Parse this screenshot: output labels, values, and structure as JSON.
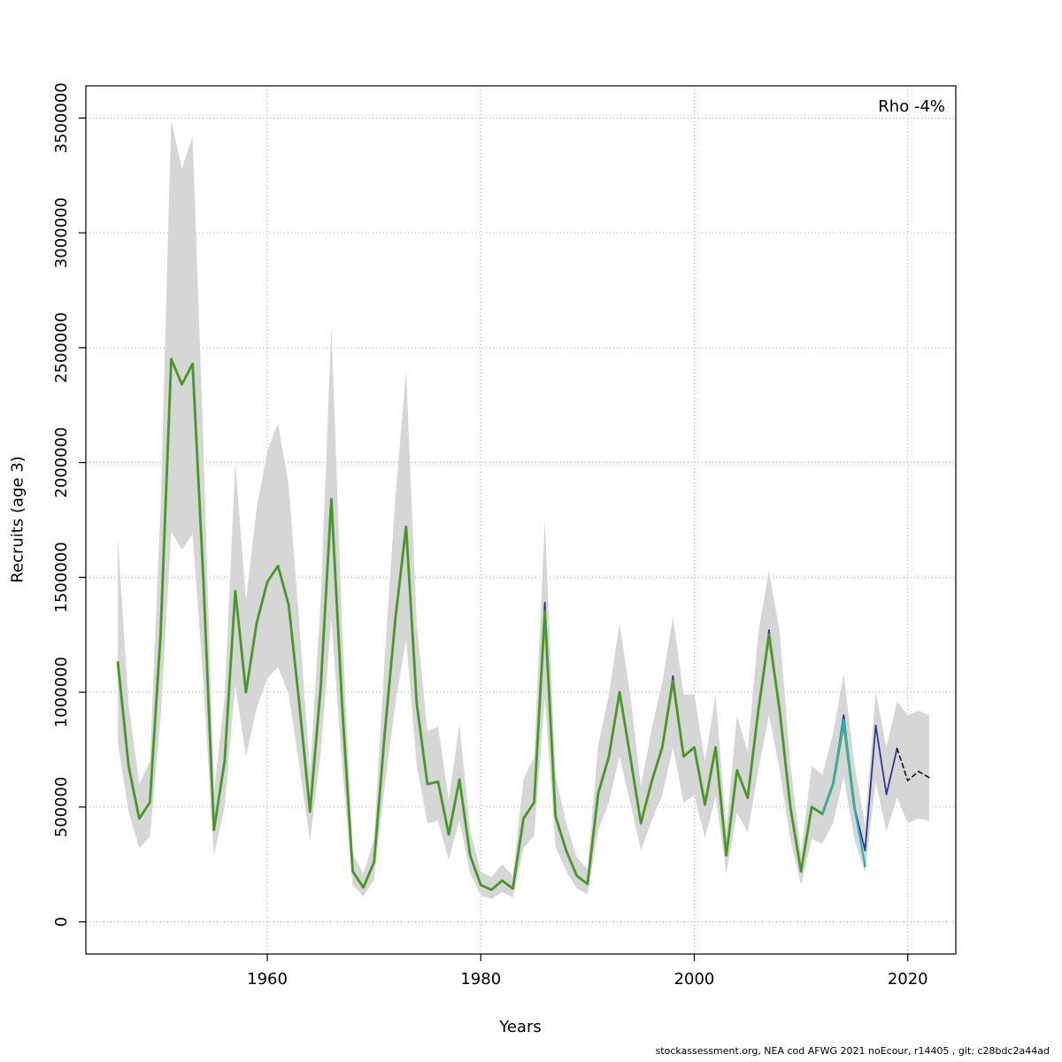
{
  "footer": {
    "text": "stockassessment.org, NEA cod AFWG 2021 noEcour, r14405 , git: c28bdc2a44ad"
  },
  "chart_data": {
    "type": "line",
    "title": "",
    "xlabel": "Years",
    "ylabel": "Recruits (age 3)",
    "annotation": "Rho -4%",
    "grid": "dotted",
    "legend": "none",
    "x_domain": [
      1943,
      2024.5
    ],
    "y_domain": [
      -140000,
      3640000
    ],
    "x_ticks": [
      1960,
      1980,
      2000,
      2020
    ],
    "x_tick_labels": [
      "1960",
      "1980",
      "2000",
      "2020"
    ],
    "y_ticks": [
      0,
      500000,
      1000000,
      1500000,
      2000000,
      2500000,
      3000000,
      3500000
    ],
    "y_tick_labels": [
      "0",
      "500000",
      "1000000",
      "1500000",
      "2000000",
      "2500000",
      "3000000",
      "3500000"
    ],
    "value_scale": 1000,
    "band": {
      "color": "#d6d6d6",
      "start_year": 1946,
      "upper": [
        1670,
        950,
        600,
        700,
        1800,
        3490,
        3280,
        3420,
        2100,
        560,
        980,
        2000,
        1400,
        1800,
        2050,
        2170,
        1900,
        1300,
        650,
        1400,
        2590,
        1300,
        300,
        210,
        360,
        1150,
        1850,
        2400,
        1300,
        830,
        850,
        530,
        860,
        400,
        220,
        195,
        250,
        200,
        620,
        720,
        1750,
        640,
        430,
        280,
        230,
        770,
        990,
        1300,
        990,
        590,
        840,
        1040,
        1330,
        990,
        990,
        700,
        990,
        400,
        900,
        740,
        1260,
        1530,
        1260,
        690,
        300,
        680,
        640,
        820,
        1080,
        690,
        420,
        1000,
        760,
        960,
        900,
        920,
        900
      ],
      "lower": [
        780,
        480,
        320,
        370,
        880,
        1700,
        1620,
        1690,
        1050,
        290,
        500,
        1030,
        720,
        930,
        1060,
        1110,
        990,
        680,
        350,
        730,
        1320,
        680,
        160,
        110,
        185,
        590,
        950,
        1230,
        680,
        430,
        440,
        270,
        445,
        210,
        115,
        100,
        130,
        105,
        320,
        375,
        970,
        330,
        220,
        145,
        120,
        400,
        520,
        720,
        520,
        310,
        440,
        550,
        760,
        520,
        550,
        365,
        550,
        210,
        475,
        390,
        660,
        900,
        660,
        360,
        160,
        360,
        340,
        430,
        630,
        360,
        215,
        610,
        395,
        540,
        430,
        450,
        440
      ]
    },
    "series": [
      {
        "name": "run-blue",
        "color": "#2b3a8f",
        "width": 1.8,
        "dash": null,
        "start_year": 1946,
        "values": [
          1130,
          680,
          450,
          520,
          1250,
          2450,
          2340,
          2430,
          1500,
          400,
          700,
          1440,
          1000,
          1300,
          1480,
          1550,
          1380,
          950,
          480,
          1020,
          1840,
          950,
          220,
          150,
          260,
          820,
          1320,
          1720,
          950,
          600,
          610,
          380,
          620,
          290,
          160,
          140,
          180,
          145,
          450,
          520,
          1390,
          460,
          310,
          200,
          165,
          560,
          720,
          1000,
          720,
          430,
          610,
          760,
          1070,
          720,
          760,
          510,
          760,
          290,
          660,
          540,
          920,
          1270,
          920,
          500,
          220,
          500,
          470,
          600,
          900,
          500,
          310,
          855,
          555,
          755
        ]
      },
      {
        "name": "run-olive",
        "color": "#7a9a2e",
        "width": 3,
        "dash": null,
        "start_year": 1946,
        "values": [
          1130,
          680,
          450,
          520,
          1250,
          2450,
          2340,
          2430,
          1500,
          400,
          700,
          1440,
          1000,
          1300,
          1480,
          1550,
          1380,
          950,
          480,
          1020,
          1840,
          950,
          220,
          150,
          260,
          820,
          1320,
          1720,
          950,
          600,
          610,
          380,
          620,
          290,
          160,
          140,
          180,
          145,
          450,
          520,
          1350,
          460,
          310,
          200,
          165,
          560,
          720,
          1000,
          720,
          430,
          610,
          760,
          1050,
          720,
          760,
          510,
          760,
          290,
          660,
          540,
          920,
          1250,
          920,
          500,
          220,
          500,
          470,
          600,
          870,
          500
        ]
      },
      {
        "name": "run-green",
        "color": "#2e9e2e",
        "width": 1.7,
        "dash": null,
        "start_year": 1946,
        "values": [
          1130,
          680,
          450,
          520,
          1250,
          2450,
          2340,
          2430,
          1500,
          400,
          700,
          1440,
          1000,
          1300,
          1480,
          1550,
          1380,
          950,
          480,
          1020,
          1840,
          950,
          220,
          150,
          260,
          820,
          1320,
          1720,
          950,
          600,
          610,
          380,
          620,
          290,
          160,
          140,
          180,
          145,
          450,
          520,
          1350,
          460,
          310,
          200,
          165,
          560,
          720,
          1000,
          720,
          430,
          610,
          760,
          1050,
          720,
          760,
          510,
          760,
          290,
          660,
          540,
          920,
          1250,
          920,
          500,
          220,
          500,
          470,
          600,
          870,
          500,
          240
        ]
      },
      {
        "name": "run-cyan",
        "color": "#19b8c4",
        "width": 2,
        "dash": null,
        "start_year": 2012,
        "values": [
          470,
          600,
          880,
          495,
          250
        ]
      },
      {
        "name": "forecast-dashed",
        "color": "#111111",
        "width": 1.6,
        "dash": "5 4",
        "start_year": 2019,
        "values": [
          755,
          615,
          655,
          628
        ]
      }
    ]
  }
}
